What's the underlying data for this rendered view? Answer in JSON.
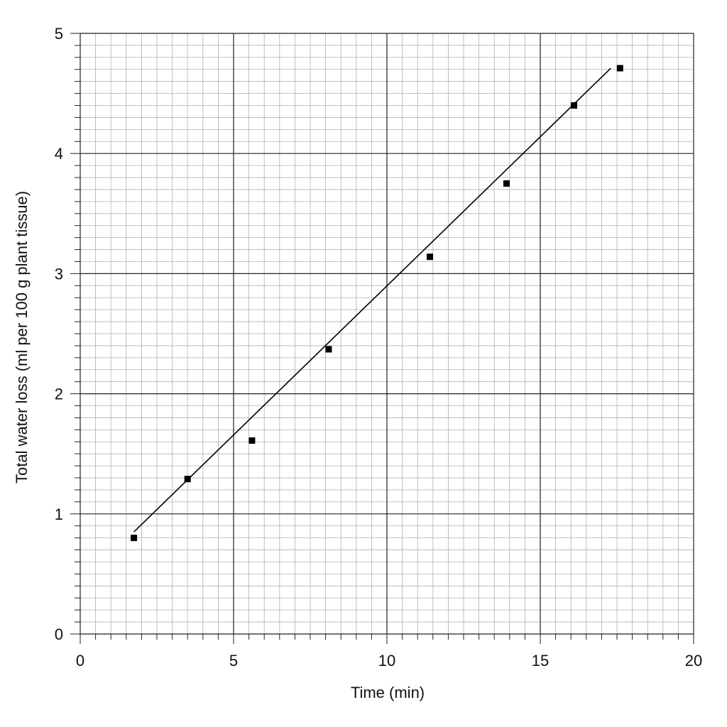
{
  "chart_data": {
    "type": "scatter",
    "title": "",
    "xlabel": "Time (min)",
    "ylabel": "Total water loss (ml per 100 g plant tissue)",
    "xlim": [
      0,
      20
    ],
    "ylim": [
      0,
      5
    ],
    "x_ticks": [
      "0",
      "5",
      "10",
      "15",
      "20"
    ],
    "y_ticks": [
      "0",
      "1",
      "2",
      "3",
      "4",
      "5"
    ],
    "grid": true,
    "legend": "none",
    "series": [
      {
        "x": [
          1.75,
          3.5,
          5.6,
          8.1,
          11.4,
          13.9,
          16.1,
          17.6
        ],
        "y": [
          0.8,
          1.29,
          1.61,
          2.37,
          3.14,
          3.75,
          4.4,
          4.71
        ]
      }
    ],
    "trendline": {
      "x": [
        1.75,
        17.3
      ],
      "y": [
        0.85,
        4.71
      ]
    },
    "colors": {
      "major_grid": "#222222",
      "minor_grid": "#b0b0b0",
      "marker": "#000000",
      "line": "#000000"
    }
  }
}
